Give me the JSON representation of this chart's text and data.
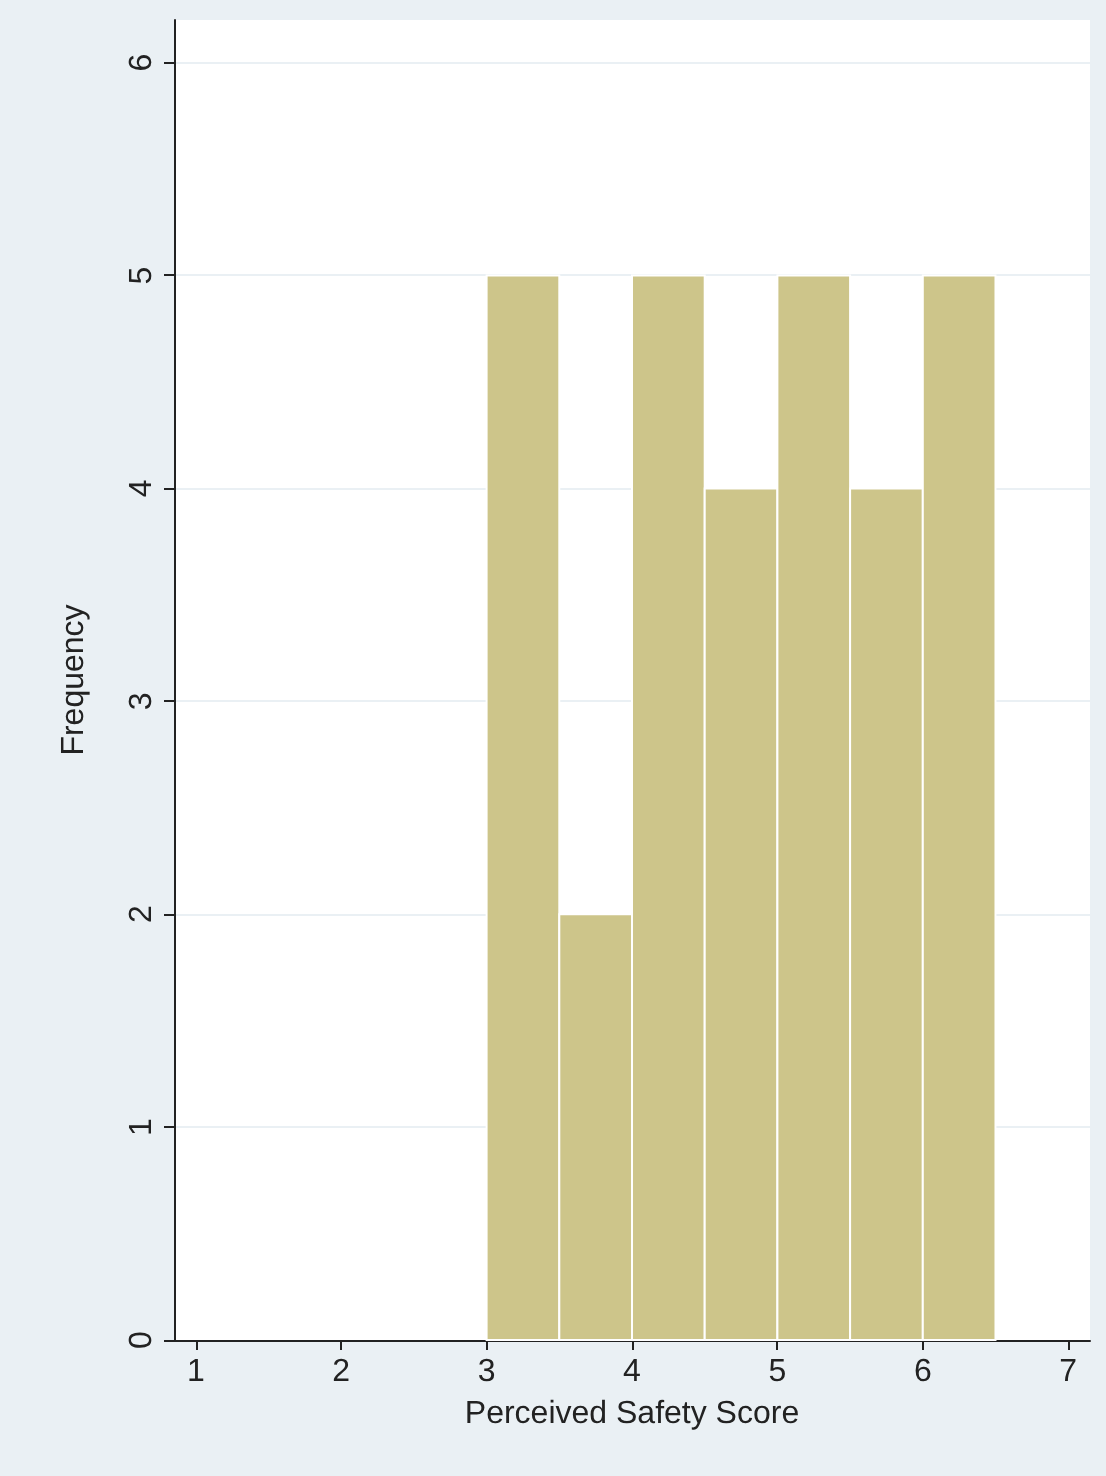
{
  "chart_data": {
    "type": "histogram",
    "xlabel": "Perceived Safety Score",
    "ylabel": "Frequency",
    "bins": [
      3,
      3.5,
      4,
      4.5,
      5,
      5.5,
      6,
      6.5
    ],
    "values": [
      5,
      2,
      5,
      4,
      5,
      4,
      5
    ],
    "color": "#cdc58a",
    "xlim": [
      0.85,
      7.15
    ],
    "xticks": [
      1,
      2,
      3,
      4,
      5,
      6,
      7
    ],
    "ylim": [
      0,
      6.2
    ],
    "yticks": [
      0,
      1,
      2,
      3,
      4,
      5,
      6
    ],
    "grid": "y"
  }
}
